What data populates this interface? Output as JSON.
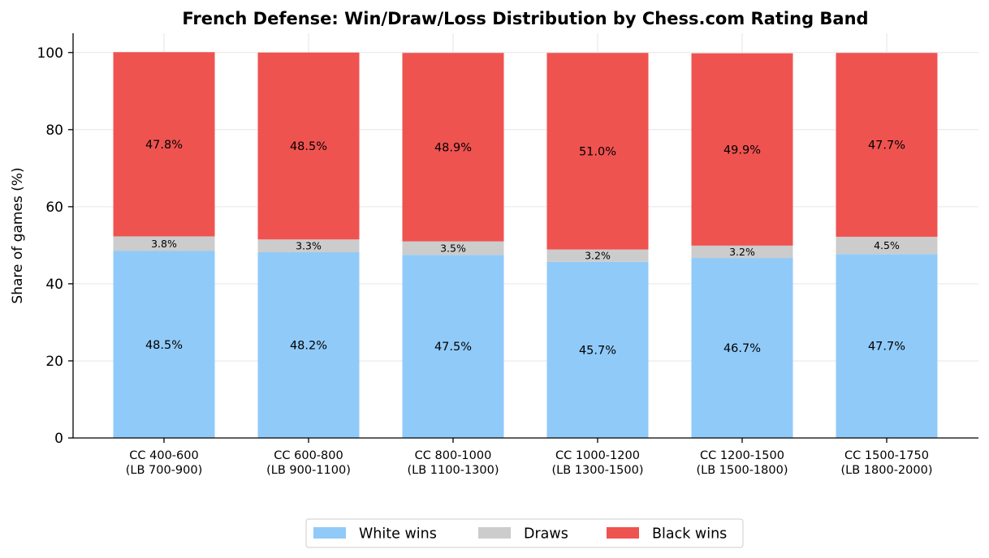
{
  "chart_data": {
    "type": "bar",
    "stacked": true,
    "orientation": "vertical",
    "title": "French Defense: Win/Draw/Loss Distribution by Chess.com Rating Band",
    "xlabel": "",
    "ylabel": "Share of games (%)",
    "ylim": [
      0,
      105
    ],
    "yticks": [
      0,
      20,
      40,
      60,
      80,
      100
    ],
    "grid": true,
    "legend_position": "bottom-center",
    "categories": [
      [
        "CC 400-600",
        "(LB 700-900)"
      ],
      [
        "CC 600-800",
        "(LB 900-1100)"
      ],
      [
        "CC 800-1000",
        "(LB 1100-1300)"
      ],
      [
        "CC 1000-1200",
        "(LB 1300-1500)"
      ],
      [
        "CC 1200-1500",
        "(LB 1500-1800)"
      ],
      [
        "CC 1500-1750",
        "(LB 1800-2000)"
      ]
    ],
    "series": [
      {
        "name": "White wins",
        "color": "#90caf9",
        "values": [
          48.5,
          48.2,
          47.5,
          45.7,
          46.7,
          47.7
        ]
      },
      {
        "name": "Draws",
        "color": "#cccccc",
        "values": [
          3.8,
          3.3,
          3.5,
          3.2,
          3.2,
          4.5
        ]
      },
      {
        "name": "Black wins",
        "color": "#ef5350",
        "values": [
          47.8,
          48.5,
          48.9,
          51.0,
          49.9,
          47.7
        ]
      }
    ]
  }
}
